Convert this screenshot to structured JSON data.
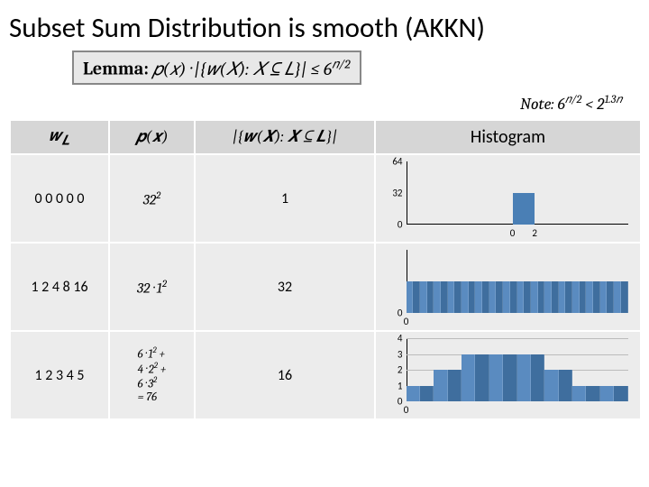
{
  "title": "Subset Sum Distribution is smooth (AKKN)",
  "lemma": {
    "label": "Lemma:",
    "expr_html": "𝑝(𝑥) · |{𝑤(𝑋): 𝑋 ⊆ 𝐿}| ≤ 6<sup>𝑛/2</sup>"
  },
  "note": {
    "prefix": "Note:",
    "expr_html": "6<sup>𝑛/2</sup> < 2<sup>1.3𝑛</sup>"
  },
  "headers": {
    "wl": "𝒘<sub>𝑳</sub>",
    "px": "𝒑(𝒙)",
    "wx": "|{𝒘(𝑿): 𝑿 ⊆ 𝑳}|",
    "hist": "Histogram"
  },
  "rows": [
    {
      "wl": "0 0 0 0 0",
      "px_html": "32<sup>2</sup>",
      "wx": "1",
      "chart": {
        "yticks": [
          {
            "v": 64,
            "p": 0
          },
          {
            "v": 32,
            "p": 0.5
          },
          {
            "v": 0,
            "p": 1
          }
        ],
        "xticks": [
          {
            "v": 0,
            "p": 0.48
          },
          {
            "v": 2,
            "p": 0.58
          }
        ],
        "bars": [
          {
            "left": 0.48,
            "w": 0.1,
            "h": 0.5
          }
        ],
        "grid": false
      }
    },
    {
      "wl": "1 2 4 8 16",
      "px_html": "32 · 1<sup>2</sup>",
      "wx": "32",
      "chart": {
        "yticks": [
          {
            "v": 0,
            "p": 1
          }
        ],
        "xticks": [
          {
            "v": 0,
            "p": 0.0
          },
          {
            "v": "",
            "p": 1
          }
        ],
        "bars_fill": {
          "n": 32,
          "h": 0.5
        },
        "grid": false
      }
    },
    {
      "wl": "1 2 3 4 5",
      "px_html": "<span class='stack'>6 · 1<sup>2</sup> +<br>4 · 2<sup>2</sup> +<br>6 · 3<sup>2</sup><br>= 76</span>",
      "wx": "16",
      "chart": {
        "yticks": [
          {
            "v": 4,
            "p": 0
          },
          {
            "v": 3,
            "p": 0.25
          },
          {
            "v": 2,
            "p": 0.5
          },
          {
            "v": 1,
            "p": 0.75
          },
          {
            "v": 0,
            "p": 1
          }
        ],
        "xticks": [
          {
            "v": 0,
            "p": 0.0
          }
        ],
        "staircase": {
          "values": [
            1,
            1,
            2,
            2,
            3,
            3,
            3,
            3,
            3,
            3,
            2,
            2,
            1,
            1,
            1,
            1
          ],
          "max": 4
        },
        "grid": true
      }
    }
  ],
  "colors": {
    "bar": "#4a7fb5",
    "header_bg": "#d6d6d6",
    "cell_bg": "#ececec"
  }
}
